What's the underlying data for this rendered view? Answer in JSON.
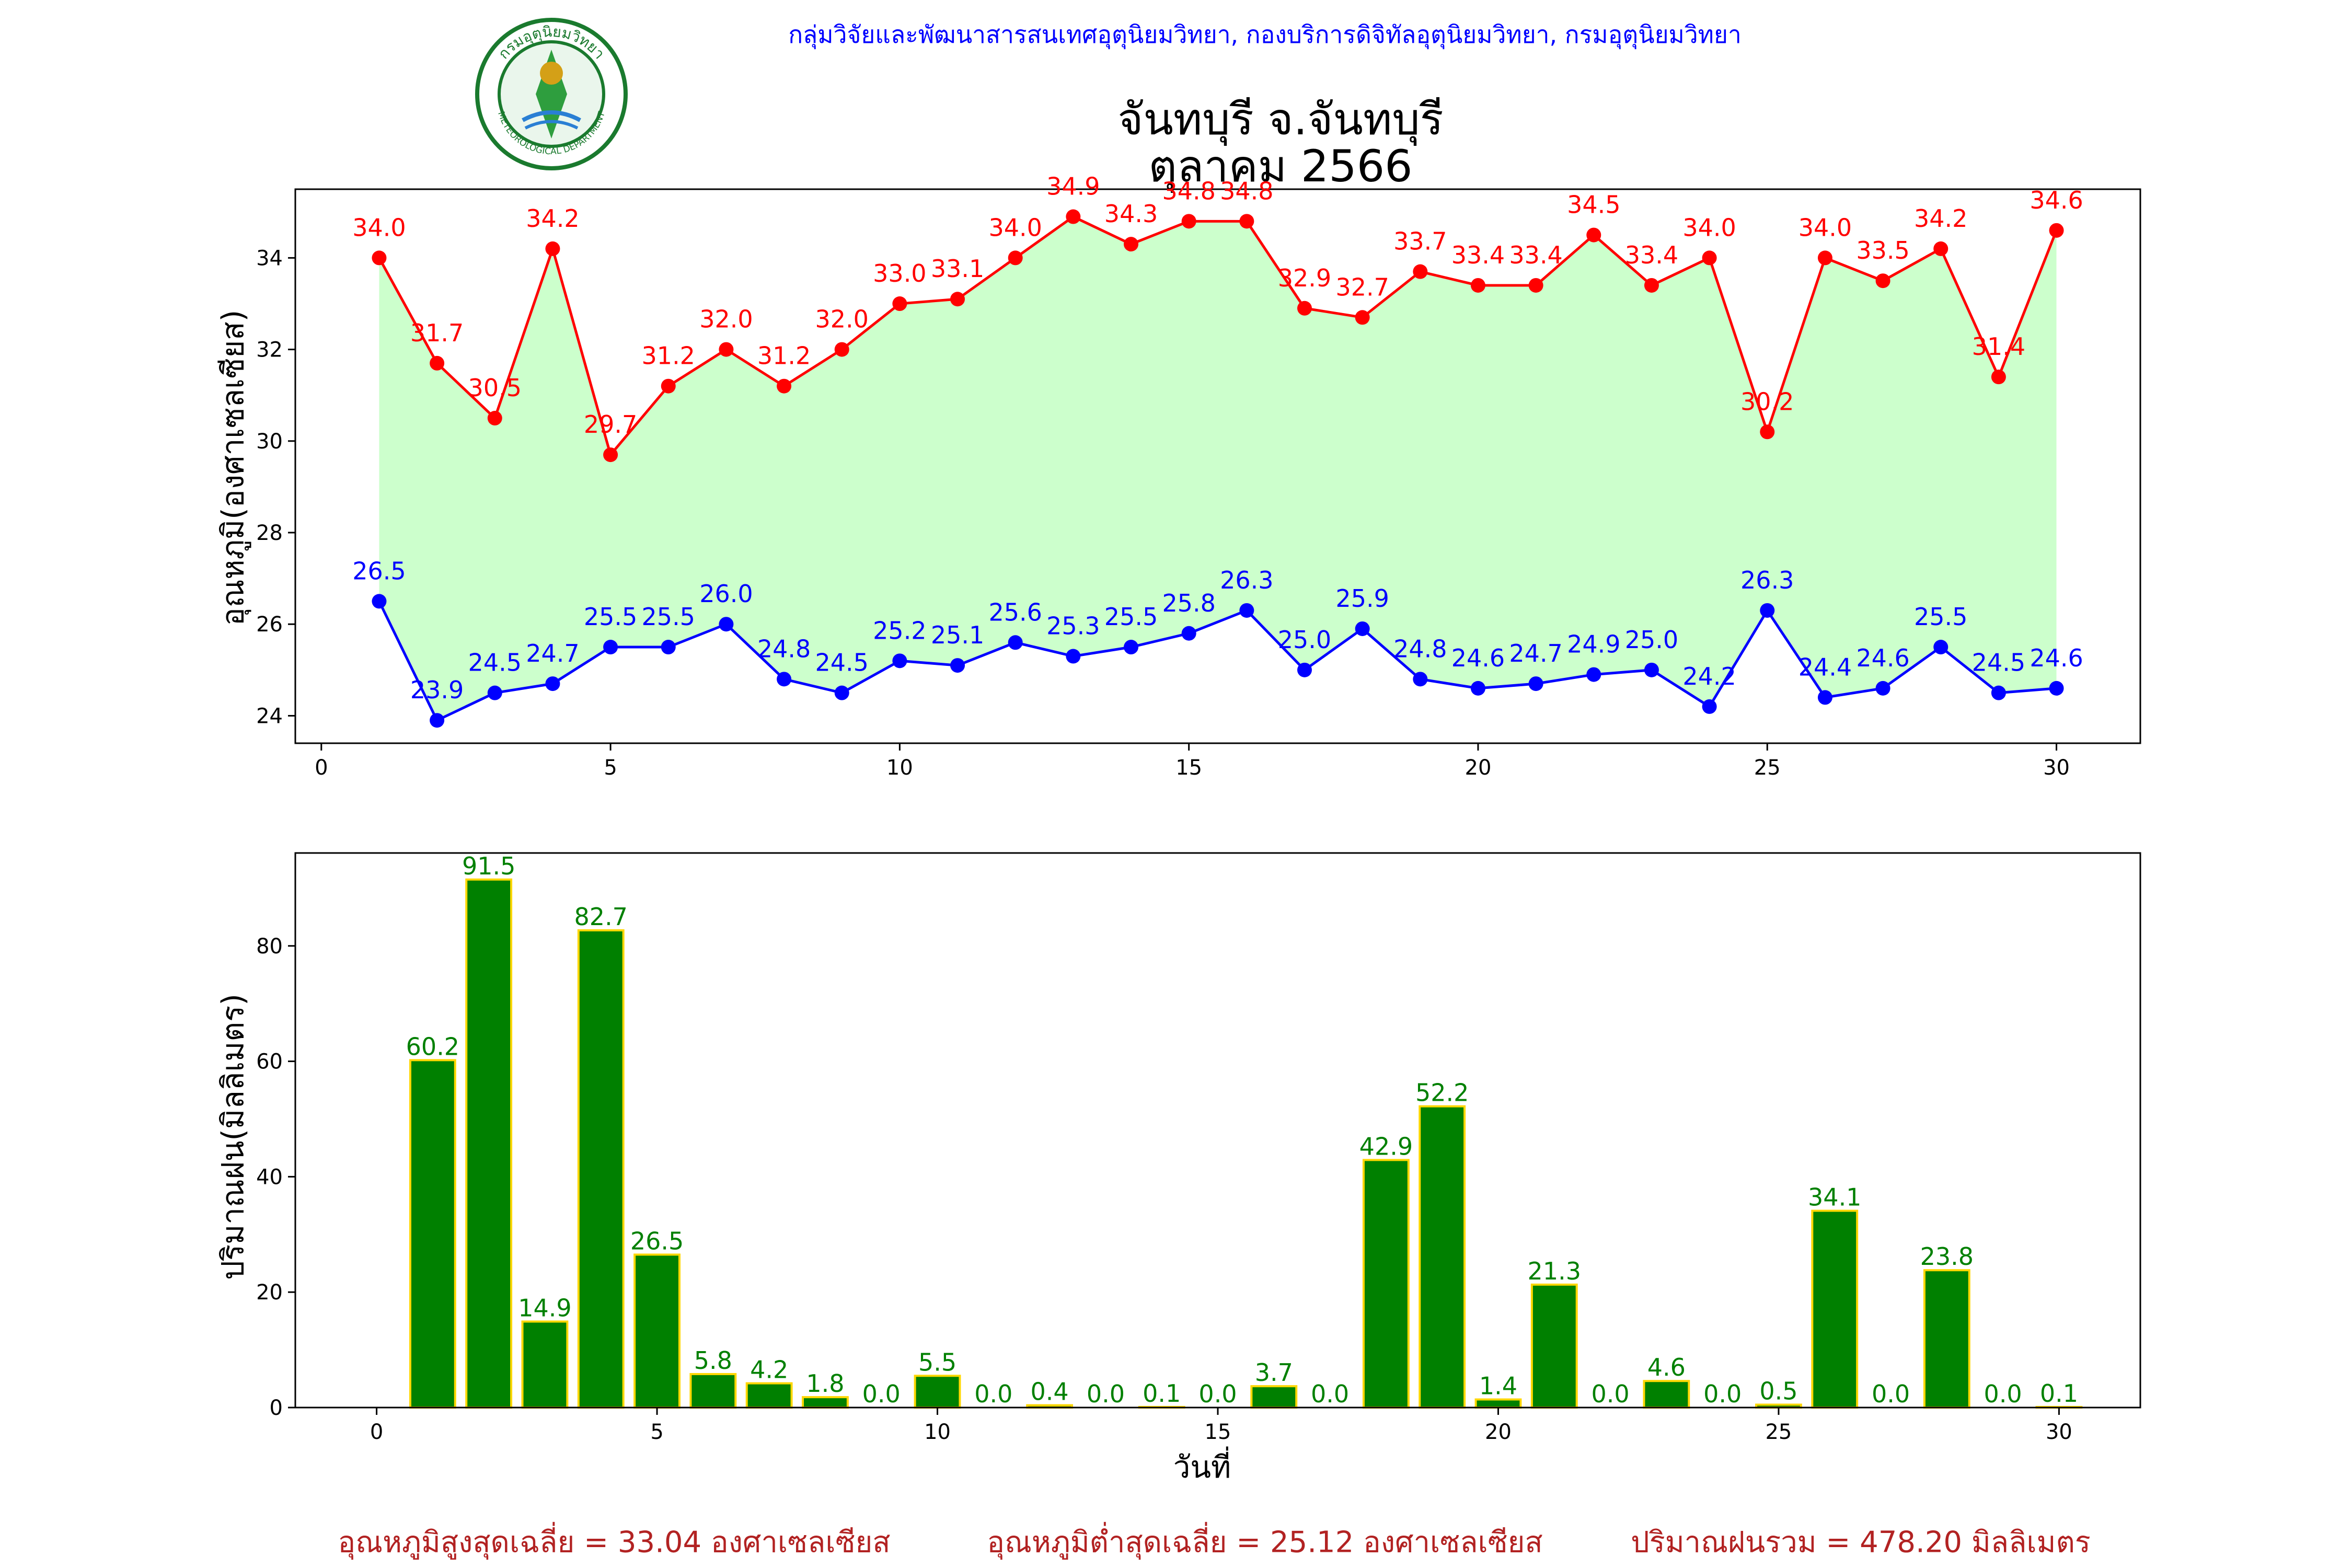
{
  "header": {
    "org_line": "กลุ่มวิจัยและพัฒนาสารสนเทศอุตุนิยมวิทยา, กองบริการดิจิทัลอุตุนิยมวิทยา, กรมอุตุนิยมวิทยา",
    "station": "จันทบุรี จ.จันทบุรี",
    "period": "ตุลาคม 2566",
    "logo_text_top": "กรมอุตุนิยมวิทยา",
    "logo_text_bottom": "METEOROLOGICAL DEPARTMENT"
  },
  "colors": {
    "max_line": "#ff0000",
    "min_line": "#0000ff",
    "fill": "#ccffcc",
    "rain_bar": "#008000",
    "rain_edge": "#ffd700",
    "rain_label": "#008000",
    "summary": "#b22222",
    "org_text": "#0000ff"
  },
  "chart_data": [
    {
      "type": "line",
      "ylabel": "อุณหภูมิ(องศาเซลเซียส)",
      "xlabel": "",
      "x": [
        1,
        2,
        3,
        4,
        5,
        6,
        7,
        8,
        9,
        10,
        11,
        12,
        13,
        14,
        15,
        16,
        17,
        18,
        19,
        20,
        21,
        22,
        23,
        24,
        25,
        26,
        27,
        28,
        29,
        30
      ],
      "series": [
        {
          "key": "max",
          "values": [
            34.0,
            31.7,
            30.5,
            34.2,
            29.7,
            31.2,
            32.0,
            31.2,
            32.0,
            33.0,
            33.1,
            34.0,
            34.9,
            34.3,
            34.8,
            34.8,
            32.9,
            32.7,
            33.7,
            33.4,
            33.4,
            34.5,
            33.4,
            34.0,
            30.2,
            34.0,
            33.5,
            34.2,
            31.4,
            34.6
          ]
        },
        {
          "key": "min",
          "values": [
            26.5,
            23.9,
            24.5,
            24.7,
            25.5,
            25.5,
            26.0,
            24.8,
            24.5,
            25.2,
            25.1,
            25.6,
            25.3,
            25.5,
            25.8,
            26.3,
            25.0,
            25.9,
            24.8,
            24.6,
            24.7,
            24.9,
            25.0,
            24.2,
            26.3,
            24.4,
            24.6,
            25.5,
            24.5,
            24.6
          ]
        }
      ],
      "fill_between": true,
      "xlim": [
        -0.45,
        31.45
      ],
      "ylim": [
        23.4,
        35.5
      ],
      "xticks": [
        0,
        5,
        10,
        15,
        20,
        25,
        30
      ],
      "yticks": [
        24,
        26,
        28,
        30,
        32,
        34
      ],
      "grid": false
    },
    {
      "type": "bar",
      "ylabel": "ปริมาณฝน(มิลลิเมตร)",
      "xlabel": "วันที่",
      "x": [
        1,
        2,
        3,
        4,
        5,
        6,
        7,
        8,
        9,
        10,
        11,
        12,
        13,
        14,
        15,
        16,
        17,
        18,
        19,
        20,
        21,
        22,
        23,
        24,
        25,
        26,
        27,
        28,
        29,
        30
      ],
      "values": [
        60.2,
        91.5,
        14.9,
        82.7,
        26.5,
        5.8,
        4.2,
        1.8,
        0.0,
        5.5,
        0.0,
        0.4,
        0.0,
        0.1,
        0.0,
        3.7,
        0.0,
        42.9,
        52.2,
        1.4,
        21.3,
        0.0,
        4.6,
        0.0,
        0.5,
        34.1,
        0.0,
        23.8,
        0.0,
        0.1
      ],
      "xlim": [
        -1.45,
        31.45
      ],
      "ylim": [
        0,
        96.1
      ],
      "xticks": [
        0,
        5,
        10,
        15,
        20,
        25,
        30
      ],
      "yticks": [
        0,
        20,
        40,
        60,
        80
      ],
      "grid": false
    }
  ],
  "summary": {
    "avg_max": "อุณหภูมิสูงสุดเฉลี่ย = 33.04 องศาเซลเซียส",
    "avg_min": "อุณหภูมิต่ำสุดเฉลี่ย = 25.12 องศาเซลเซียส",
    "total_rain": "ปริมาณฝนรวม = 478.20 มิลลิเมตร"
  }
}
